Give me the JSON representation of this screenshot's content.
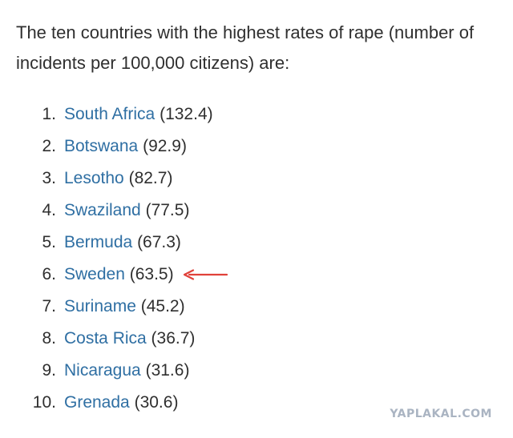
{
  "intro": {
    "text": "The ten countries with the highest rates of rape (number of incidents per 100,000 citizens) are:"
  },
  "countries": [
    {
      "rank": "1.",
      "name": "South Africa",
      "rate": "(132.4)"
    },
    {
      "rank": "2.",
      "name": "Botswana",
      "rate": "(92.9)"
    },
    {
      "rank": "3.",
      "name": "Lesotho",
      "rate": "(82.7)"
    },
    {
      "rank": "4.",
      "name": "Swaziland",
      "rate": "(77.5)"
    },
    {
      "rank": "5.",
      "name": "Bermuda",
      "rate": "(67.3)"
    },
    {
      "rank": "6.",
      "name": "Sweden",
      "rate": "(63.5)"
    },
    {
      "rank": "7.",
      "name": "Suriname",
      "rate": "(45.2)"
    },
    {
      "rank": "8.",
      "name": "Costa Rica",
      "rate": "(36.7)"
    },
    {
      "rank": "9.",
      "name": "Nicaragua",
      "rate": "(31.6)"
    },
    {
      "rank": "10.",
      "name": "Grenada",
      "rate": "(30.6)"
    }
  ],
  "annotation": {
    "icon": "red-arrow-left-icon",
    "color": "#e0413a",
    "highlighted_item": "Sweden"
  },
  "colors": {
    "text": "#2f2f2f",
    "link": "#2f6fa3",
    "watermark": "#aab4c2"
  },
  "watermark": {
    "text": "YAPLAKAL.COM"
  }
}
